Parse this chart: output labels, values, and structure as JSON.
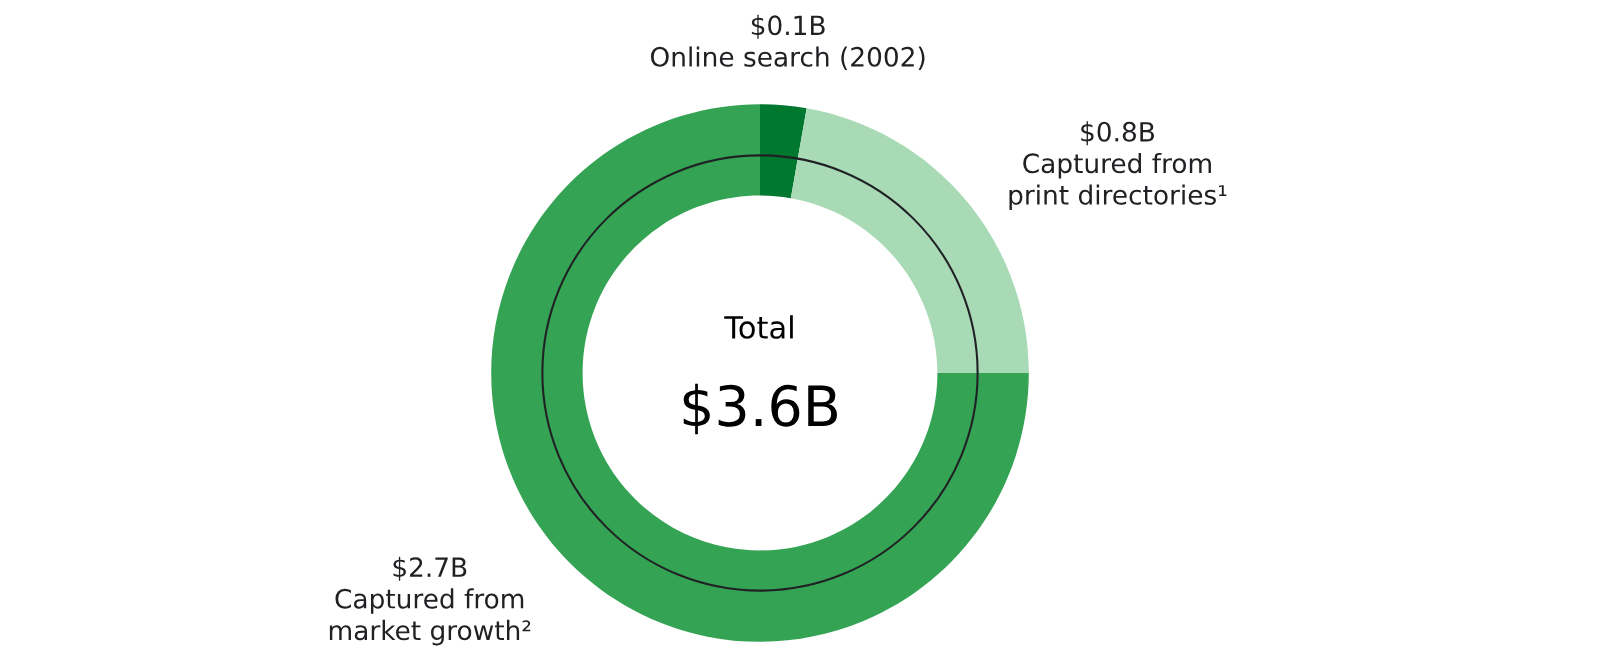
{
  "chart_data": {
    "type": "donut",
    "categories": [
      "Online search (2002)",
      "Captured from\nprint directories¹",
      "Captured from\nmarket growth²"
    ],
    "values": [
      0.1,
      0.8,
      2.7
    ],
    "value_labels": [
      "$0.1B",
      "$0.8B",
      "$2.7B"
    ],
    "colors": [
      "#00782f",
      "#a8dab5",
      "#34a353"
    ],
    "annotations": [
      "Total",
      "$3.6B"
    ],
    "legend": false
  }
}
